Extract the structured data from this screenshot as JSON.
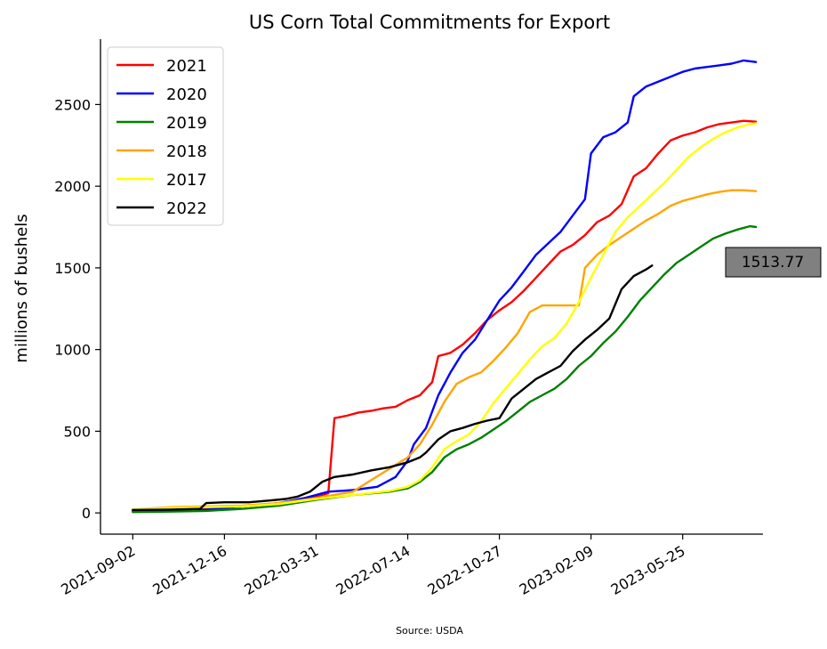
{
  "chart_data": {
    "type": "line",
    "title": "US Corn Total Commitments for Export",
    "xlabel": "",
    "ylabel": "millions of bushels",
    "source": "Source: USDA",
    "x_tick_labels": [
      "2021-09-02",
      "2021-12-16",
      "2022-03-31",
      "2022-07-14",
      "2022-10-27",
      "2023-02-09",
      "2023-05-25"
    ],
    "y_ticks": [
      0,
      500,
      1000,
      1500,
      2000,
      2500
    ],
    "ylim": [
      -130,
      2900
    ],
    "xlim": [
      "2021-07-27",
      "2023-08-25"
    ],
    "grid": false,
    "legend_position": "top-left",
    "callout": {
      "label": "1513.77",
      "value": 1513.77,
      "fill": "#808080"
    },
    "series": [
      {
        "name": "2021",
        "color": "#ff0000",
        "points": [
          [
            "2021-09-02",
            15
          ],
          [
            "2021-10-14",
            18
          ],
          [
            "2021-11-25",
            25
          ],
          [
            "2022-01-06",
            40
          ],
          [
            "2022-02-17",
            60
          ],
          [
            "2022-03-17",
            80
          ],
          [
            "2022-03-31",
            100
          ],
          [
            "2022-04-14",
            120
          ],
          [
            "2022-04-21",
            580
          ],
          [
            "2022-05-05",
            595
          ],
          [
            "2022-05-19",
            615
          ],
          [
            "2022-06-02",
            625
          ],
          [
            "2022-06-16",
            640
          ],
          [
            "2022-06-30",
            650
          ],
          [
            "2022-07-14",
            690
          ],
          [
            "2022-07-28",
            720
          ],
          [
            "2022-08-11",
            800
          ],
          [
            "2022-08-18",
            960
          ],
          [
            "2022-09-01",
            980
          ],
          [
            "2022-09-15",
            1030
          ],
          [
            "2022-09-29",
            1100
          ],
          [
            "2022-10-13",
            1180
          ],
          [
            "2022-10-27",
            1240
          ],
          [
            "2022-11-10",
            1290
          ],
          [
            "2022-11-24",
            1360
          ],
          [
            "2022-12-08",
            1440
          ],
          [
            "2022-12-22",
            1520
          ],
          [
            "2023-01-05",
            1600
          ],
          [
            "2023-01-19",
            1640
          ],
          [
            "2023-02-02",
            1700
          ],
          [
            "2023-02-16",
            1780
          ],
          [
            "2023-03-02",
            1820
          ],
          [
            "2023-03-16",
            1890
          ],
          [
            "2023-03-30",
            2060
          ],
          [
            "2023-04-13",
            2110
          ],
          [
            "2023-04-27",
            2200
          ],
          [
            "2023-05-11",
            2280
          ],
          [
            "2023-05-25",
            2310
          ],
          [
            "2023-06-08",
            2330
          ],
          [
            "2023-06-22",
            2360
          ],
          [
            "2023-07-06",
            2380
          ],
          [
            "2023-07-20",
            2390
          ],
          [
            "2023-08-03",
            2400
          ],
          [
            "2023-08-17",
            2395
          ]
        ]
      },
      {
        "name": "2020",
        "color": "#0000ff",
        "points": [
          [
            "2021-09-02",
            10
          ],
          [
            "2021-10-14",
            15
          ],
          [
            "2021-11-25",
            20
          ],
          [
            "2022-01-06",
            40
          ],
          [
            "2022-02-17",
            60
          ],
          [
            "2022-03-17",
            90
          ],
          [
            "2022-03-31",
            110
          ],
          [
            "2022-04-14",
            130
          ],
          [
            "2022-05-12",
            140
          ],
          [
            "2022-06-09",
            160
          ],
          [
            "2022-06-30",
            220
          ],
          [
            "2022-07-14",
            320
          ],
          [
            "2022-07-21",
            420
          ],
          [
            "2022-08-04",
            520
          ],
          [
            "2022-08-18",
            720
          ],
          [
            "2022-09-01",
            860
          ],
          [
            "2022-09-15",
            980
          ],
          [
            "2022-09-29",
            1060
          ],
          [
            "2022-10-13",
            1180
          ],
          [
            "2022-10-27",
            1300
          ],
          [
            "2022-11-10",
            1380
          ],
          [
            "2022-11-24",
            1480
          ],
          [
            "2022-12-08",
            1580
          ],
          [
            "2022-12-22",
            1650
          ],
          [
            "2023-01-05",
            1720
          ],
          [
            "2023-01-19",
            1820
          ],
          [
            "2023-02-02",
            1920
          ],
          [
            "2023-02-09",
            2200
          ],
          [
            "2023-02-23",
            2300
          ],
          [
            "2023-03-09",
            2330
          ],
          [
            "2023-03-23",
            2390
          ],
          [
            "2023-03-30",
            2550
          ],
          [
            "2023-04-13",
            2610
          ],
          [
            "2023-04-27",
            2640
          ],
          [
            "2023-05-11",
            2670
          ],
          [
            "2023-05-25",
            2700
          ],
          [
            "2023-06-08",
            2720
          ],
          [
            "2023-06-22",
            2730
          ],
          [
            "2023-07-06",
            2740
          ],
          [
            "2023-07-20",
            2750
          ],
          [
            "2023-08-03",
            2770
          ],
          [
            "2023-08-17",
            2760
          ]
        ]
      },
      {
        "name": "2019",
        "color": "#008000",
        "points": [
          [
            "2021-09-02",
            5
          ],
          [
            "2021-10-14",
            8
          ],
          [
            "2021-11-25",
            12
          ],
          [
            "2022-01-06",
            25
          ],
          [
            "2022-02-17",
            45
          ],
          [
            "2022-03-31",
            80
          ],
          [
            "2022-05-12",
            110
          ],
          [
            "2022-06-23",
            130
          ],
          [
            "2022-07-14",
            150
          ],
          [
            "2022-07-28",
            190
          ],
          [
            "2022-08-11",
            250
          ],
          [
            "2022-08-25",
            340
          ],
          [
            "2022-09-08",
            390
          ],
          [
            "2022-09-22",
            420
          ],
          [
            "2022-10-06",
            460
          ],
          [
            "2022-10-20",
            510
          ],
          [
            "2022-11-03",
            560
          ],
          [
            "2022-11-17",
            620
          ],
          [
            "2022-12-01",
            680
          ],
          [
            "2022-12-15",
            720
          ],
          [
            "2022-12-29",
            760
          ],
          [
            "2023-01-12",
            820
          ],
          [
            "2023-01-26",
            900
          ],
          [
            "2023-02-09",
            960
          ],
          [
            "2023-02-23",
            1040
          ],
          [
            "2023-03-09",
            1110
          ],
          [
            "2023-03-23",
            1200
          ],
          [
            "2023-04-06",
            1300
          ],
          [
            "2023-04-20",
            1380
          ],
          [
            "2023-05-04",
            1460
          ],
          [
            "2023-05-18",
            1530
          ],
          [
            "2023-06-01",
            1580
          ],
          [
            "2023-06-15",
            1630
          ],
          [
            "2023-06-29",
            1680
          ],
          [
            "2023-07-13",
            1710
          ],
          [
            "2023-07-27",
            1735
          ],
          [
            "2023-08-10",
            1755
          ],
          [
            "2023-08-17",
            1750
          ]
        ]
      },
      {
        "name": "2018",
        "color": "#ffa500",
        "points": [
          [
            "2021-09-02",
            20
          ],
          [
            "2021-10-14",
            35
          ],
          [
            "2021-11-25",
            40
          ],
          [
            "2022-01-06",
            45
          ],
          [
            "2022-02-17",
            60
          ],
          [
            "2022-03-31",
            90
          ],
          [
            "2022-05-12",
            130
          ],
          [
            "2022-06-02",
            200
          ],
          [
            "2022-06-23",
            270
          ],
          [
            "2022-07-14",
            340
          ],
          [
            "2022-07-28",
            420
          ],
          [
            "2022-08-11",
            540
          ],
          [
            "2022-08-25",
            680
          ],
          [
            "2022-09-08",
            790
          ],
          [
            "2022-09-22",
            830
          ],
          [
            "2022-10-06",
            860
          ],
          [
            "2022-10-20",
            930
          ],
          [
            "2022-11-03",
            1010
          ],
          [
            "2022-11-17",
            1100
          ],
          [
            "2022-12-01",
            1230
          ],
          [
            "2022-12-15",
            1270
          ],
          [
            "2023-01-05",
            1270
          ],
          [
            "2023-01-26",
            1270
          ],
          [
            "2023-02-02",
            1500
          ],
          [
            "2023-02-16",
            1580
          ],
          [
            "2023-03-02",
            1640
          ],
          [
            "2023-03-16",
            1690
          ],
          [
            "2023-03-30",
            1740
          ],
          [
            "2023-04-13",
            1790
          ],
          [
            "2023-04-27",
            1830
          ],
          [
            "2023-05-11",
            1880
          ],
          [
            "2023-05-25",
            1910
          ],
          [
            "2023-06-08",
            1930
          ],
          [
            "2023-06-22",
            1950
          ],
          [
            "2023-07-06",
            1965
          ],
          [
            "2023-07-20",
            1975
          ],
          [
            "2023-08-03",
            1975
          ],
          [
            "2023-08-17",
            1970
          ]
        ]
      },
      {
        "name": "2017",
        "color": "#ffff00",
        "points": [
          [
            "2021-09-02",
            20
          ],
          [
            "2021-10-14",
            30
          ],
          [
            "2021-11-25",
            35
          ],
          [
            "2022-01-06",
            40
          ],
          [
            "2022-02-17",
            55
          ],
          [
            "2022-03-31",
            85
          ],
          [
            "2022-05-12",
            110
          ],
          [
            "2022-06-23",
            135
          ],
          [
            "2022-07-14",
            160
          ],
          [
            "2022-07-28",
            200
          ],
          [
            "2022-08-11",
            280
          ],
          [
            "2022-08-25",
            390
          ],
          [
            "2022-09-08",
            440
          ],
          [
            "2022-09-22",
            480
          ],
          [
            "2022-10-06",
            560
          ],
          [
            "2022-10-20",
            670
          ],
          [
            "2022-11-03",
            760
          ],
          [
            "2022-11-17",
            850
          ],
          [
            "2022-12-01",
            940
          ],
          [
            "2022-12-15",
            1020
          ],
          [
            "2022-12-29",
            1070
          ],
          [
            "2023-01-12",
            1160
          ],
          [
            "2023-01-26",
            1290
          ],
          [
            "2023-02-09",
            1440
          ],
          [
            "2023-02-23",
            1580
          ],
          [
            "2023-03-09",
            1720
          ],
          [
            "2023-03-23",
            1810
          ],
          [
            "2023-04-06",
            1880
          ],
          [
            "2023-04-20",
            1950
          ],
          [
            "2023-05-04",
            2020
          ],
          [
            "2023-05-18",
            2100
          ],
          [
            "2023-06-01",
            2180
          ],
          [
            "2023-06-15",
            2240
          ],
          [
            "2023-06-29",
            2290
          ],
          [
            "2023-07-13",
            2330
          ],
          [
            "2023-07-27",
            2360
          ],
          [
            "2023-08-10",
            2380
          ],
          [
            "2023-08-17",
            2385
          ]
        ]
      },
      {
        "name": "2022",
        "color": "#000000",
        "points": [
          [
            "2021-09-02",
            18
          ],
          [
            "2021-10-14",
            20
          ],
          [
            "2021-11-18",
            25
          ],
          [
            "2021-11-25",
            60
          ],
          [
            "2021-12-16",
            65
          ],
          [
            "2022-01-13",
            65
          ],
          [
            "2022-02-03",
            75
          ],
          [
            "2022-02-24",
            85
          ],
          [
            "2022-03-10",
            100
          ],
          [
            "2022-03-24",
            130
          ],
          [
            "2022-04-07",
            190
          ],
          [
            "2022-04-21",
            220
          ],
          [
            "2022-05-12",
            235
          ],
          [
            "2022-06-02",
            260
          ],
          [
            "2022-06-23",
            280
          ],
          [
            "2022-07-14",
            310
          ],
          [
            "2022-07-28",
            340
          ],
          [
            "2022-08-04",
            370
          ],
          [
            "2022-08-18",
            450
          ],
          [
            "2022-09-01",
            500
          ],
          [
            "2022-09-15",
            520
          ],
          [
            "2022-09-29",
            545
          ],
          [
            "2022-10-13",
            565
          ],
          [
            "2022-10-27",
            580
          ],
          [
            "2022-11-10",
            700
          ],
          [
            "2022-11-24",
            760
          ],
          [
            "2022-12-08",
            820
          ],
          [
            "2022-12-22",
            860
          ],
          [
            "2023-01-05",
            900
          ],
          [
            "2023-01-19",
            990
          ],
          [
            "2023-02-02",
            1060
          ],
          [
            "2023-02-16",
            1120
          ],
          [
            "2023-03-02",
            1190
          ],
          [
            "2023-03-16",
            1370
          ],
          [
            "2023-03-30",
            1450
          ],
          [
            "2023-04-13",
            1490
          ],
          [
            "2023-04-20",
            1514
          ]
        ]
      }
    ]
  }
}
